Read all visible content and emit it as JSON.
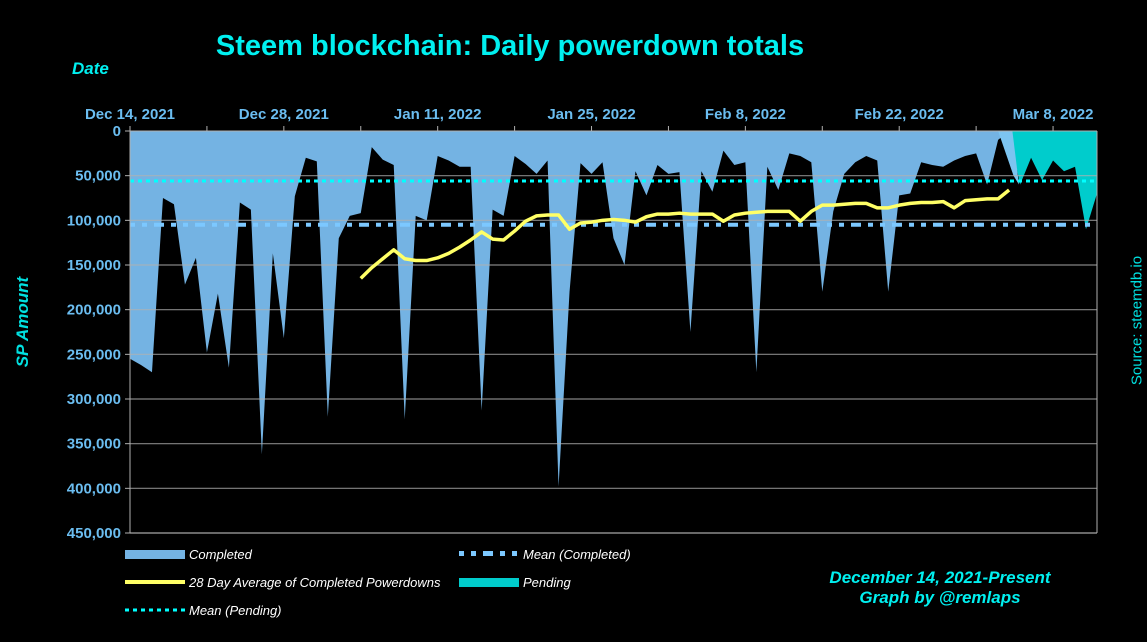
{
  "chart_data": {
    "type": "area",
    "title": "Steem blockchain: Daily powerdown totals",
    "xlabel": "Date",
    "ylabel": "SP Amount",
    "source": "Source: steemdb.io",
    "credit_lines": [
      "December 14, 2021-Present",
      "Graph by @remlaps"
    ],
    "y_inverted": true,
    "ylim": [
      0,
      450000
    ],
    "y_ticks": [
      "0",
      "50,000",
      "100,000",
      "150,000",
      "200,000",
      "250,000",
      "300,000",
      "350,000",
      "400,000",
      "450,000"
    ],
    "y_tick_values": [
      0,
      50000,
      100000,
      150000,
      200000,
      250000,
      300000,
      350000,
      400000,
      450000
    ],
    "x_start": "2021-12-14",
    "x_days_total": 88,
    "x_tick_labels": [
      "Dec 14, 2021",
      "Dec 28, 2021",
      "Jan 11, 2022",
      "Jan 25, 2022",
      "Feb 8, 2022",
      "Feb 22, 2022",
      "Mar 8, 2022"
    ],
    "x_tick_label_days": [
      0,
      14,
      28,
      42,
      56,
      70,
      84
    ],
    "x_minor_tick_interval_days": 7,
    "grid": true,
    "legend_position": "bottom",
    "colors": {
      "completed": "#74b3e3",
      "pending": "#00cccc",
      "pending_overlap": "#7cc4f0",
      "avg28": "#ffff66",
      "mean_completed": "#7cc8ff",
      "mean_pending": "#00ffff",
      "title": "#00f0f0",
      "tick_label": "#6bbdf0",
      "grid": "#b0b0b0"
    },
    "series": [
      {
        "name": "Completed",
        "kind": "area",
        "days": [
          0,
          1,
          2,
          3,
          4,
          5,
          6,
          7,
          8,
          9,
          10,
          11,
          12,
          13,
          14,
          15,
          16,
          17,
          18,
          19,
          20,
          21,
          22,
          23,
          24,
          25,
          26,
          27,
          28,
          29,
          30,
          31,
          32,
          33,
          34,
          35,
          36,
          37,
          38,
          39,
          40,
          41,
          42,
          43,
          44,
          45,
          46,
          47,
          48,
          49,
          50,
          51,
          52,
          53,
          54,
          55,
          56,
          57,
          58,
          59,
          60,
          61,
          62,
          63,
          64,
          65,
          66,
          67,
          68,
          69,
          70,
          71,
          72,
          73,
          74,
          75,
          76,
          77,
          78,
          79,
          80,
          81,
          82,
          83,
          84,
          85
        ],
        "values": [
          255000,
          262000,
          270000,
          75000,
          82000,
          172000,
          142000,
          248000,
          182000,
          265000,
          80000,
          88000,
          362000,
          137000,
          232000,
          73000,
          30000,
          34000,
          320000,
          120000,
          95000,
          92000,
          18000,
          32000,
          38000,
          323000,
          95000,
          100000,
          28000,
          33000,
          40000,
          40000,
          313000,
          88000,
          95000,
          28000,
          37000,
          48000,
          33000,
          398000,
          180000,
          36000,
          48000,
          35000,
          120000,
          150000,
          45000,
          72000,
          38000,
          48000,
          46000,
          225000,
          45000,
          68000,
          22000,
          38000,
          35000,
          270000,
          40000,
          66000,
          25000,
          28000,
          35000,
          180000,
          90000,
          48000,
          35000,
          28000,
          33000,
          180000,
          72000,
          70000,
          35000,
          38000,
          40000,
          33000,
          28000,
          25000,
          60000,
          10000,
          0,
          0,
          0,
          0,
          0,
          0
        ],
        "note": "Values read from the area profile (downward from zero). Final days overlap with Pending."
      },
      {
        "name": "Pending",
        "kind": "area",
        "days": [
          80,
          81,
          82,
          83,
          84,
          85,
          86,
          87,
          88
        ],
        "values": [
          0,
          60000,
          30000,
          55000,
          33000,
          45000,
          40000,
          110000,
          70000
        ]
      },
      {
        "name": "28 Day Average of Completed Powerdowns",
        "kind": "line",
        "days": [
          21,
          22,
          23,
          24,
          25,
          26,
          27,
          28,
          29,
          30,
          31,
          32,
          33,
          34,
          35,
          36,
          37,
          38,
          39,
          40,
          41,
          42,
          43,
          44,
          45,
          46,
          47,
          48,
          49,
          50,
          51,
          52,
          53,
          54,
          55,
          56,
          57,
          58,
          59,
          60,
          61,
          62,
          63,
          64,
          65,
          66,
          67,
          68,
          69,
          70,
          71,
          72,
          73,
          74,
          75,
          76,
          77,
          78,
          79,
          80
        ],
        "values": [
          165000,
          153000,
          143000,
          133000,
          143000,
          145000,
          145000,
          142000,
          137000,
          130000,
          122000,
          113000,
          121000,
          122000,
          112000,
          101000,
          95000,
          94000,
          94000,
          110000,
          103000,
          102000,
          100000,
          99000,
          100000,
          102000,
          96000,
          93000,
          93000,
          92000,
          93000,
          93000,
          93000,
          101000,
          94000,
          92000,
          91000,
          90000,
          90000,
          90000,
          101000,
          90000,
          83000,
          83000,
          82000,
          81000,
          81000,
          86000,
          86000,
          83000,
          81000,
          80000,
          80000,
          79000,
          86000,
          78000,
          77000,
          76000,
          76000,
          66000
        ]
      },
      {
        "name": "Mean (Completed)",
        "kind": "hline",
        "value": 105000
      },
      {
        "name": "Mean (Pending)",
        "kind": "hline",
        "value": 56000
      }
    ],
    "legend": [
      {
        "label": "Completed",
        "style": "area",
        "color_key": "completed"
      },
      {
        "label": "Mean (Completed)",
        "style": "dash-dot",
        "color_key": "mean_completed"
      },
      {
        "label": "28 Day Average of Completed Powerdowns",
        "style": "line",
        "color_key": "avg28"
      },
      {
        "label": "Pending",
        "style": "area",
        "color_key": "pending"
      },
      {
        "label": "Mean (Pending)",
        "style": "dotted",
        "color_key": "mean_pending"
      }
    ]
  }
}
